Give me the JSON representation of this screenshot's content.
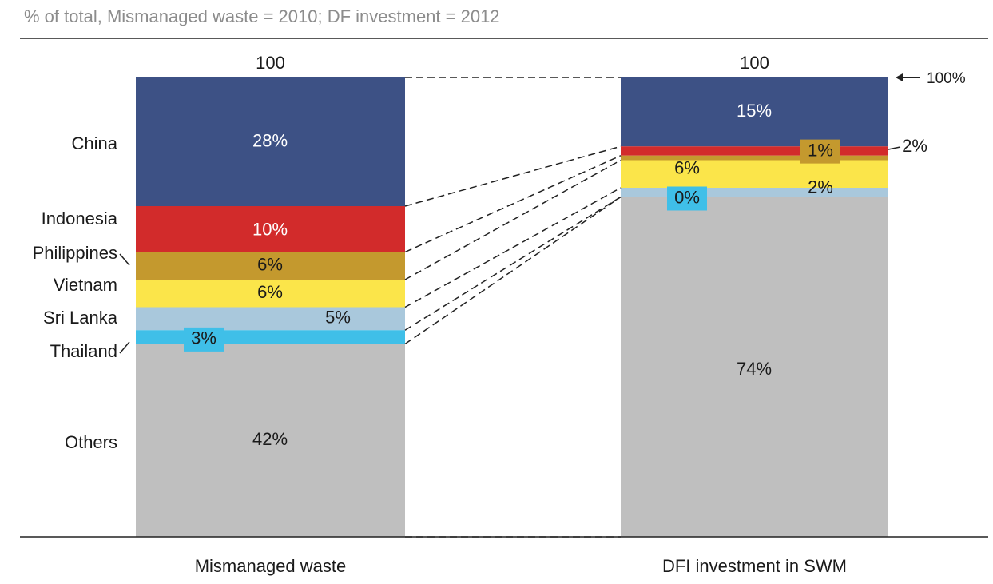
{
  "chart_data": {
    "type": "stacked_bar",
    "subtitle": "% of total, Mismanaged waste = 2010; DF investment = 2012",
    "categories": [
      "Mismanaged waste",
      "DFI investment in SWM"
    ],
    "totals": [
      100,
      100
    ],
    "annotation": "100%",
    "ylim": [
      0,
      100
    ],
    "series": [
      {
        "name": "China",
        "color": "#3d5185",
        "values": [
          28,
          15
        ],
        "value_labels": [
          "28%",
          "15%"
        ]
      },
      {
        "name": "Indonesia",
        "color": "#d22b2b",
        "values": [
          10,
          2
        ],
        "value_labels": [
          "10%",
          "2%"
        ]
      },
      {
        "name": "Philippines",
        "color": "#c4992e",
        "values": [
          6,
          1
        ],
        "value_labels": [
          "6%",
          "1%"
        ]
      },
      {
        "name": "Vietnam",
        "color": "#fbe54a",
        "values": [
          6,
          6
        ],
        "value_labels": [
          "6%",
          "6%"
        ]
      },
      {
        "name": "Sri Lanka",
        "color": "#a9c8dc",
        "values": [
          5,
          2
        ],
        "value_labels": [
          "5%",
          "2%"
        ]
      },
      {
        "name": "Thailand",
        "color": "#3fbfe8",
        "values": [
          3,
          0
        ],
        "value_labels": [
          "3%",
          "0%"
        ]
      },
      {
        "name": "Others",
        "color": "#bfbfbf",
        "values": [
          42,
          74
        ],
        "value_labels": [
          "42%",
          "74%"
        ]
      }
    ]
  }
}
